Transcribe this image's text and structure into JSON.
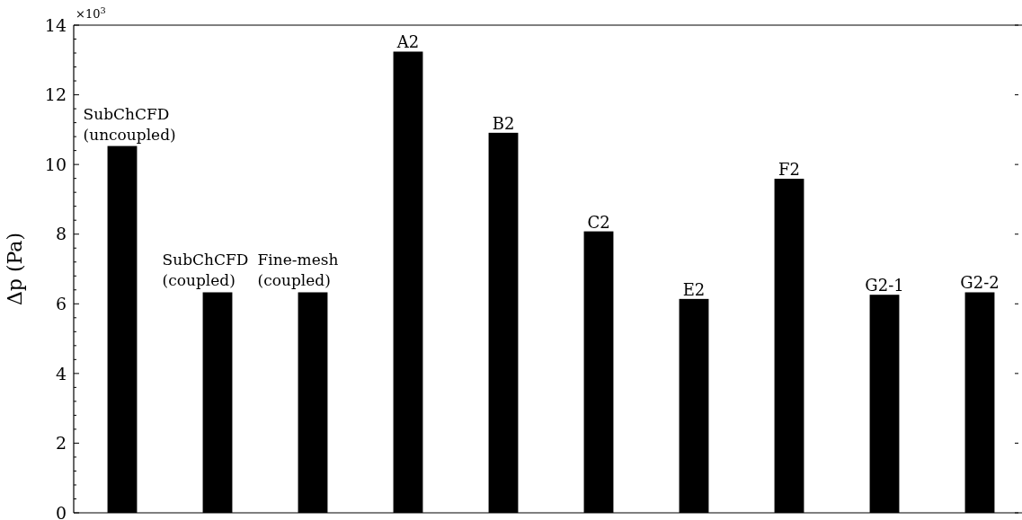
{
  "chart_data": {
    "type": "bar",
    "ylabel": "Δp (Pa)",
    "categories": [
      "SubChCFD (uncoupled)",
      "SubChCFD (coupled)",
      "Fine-mesh (coupled)",
      "A2",
      "B2",
      "C2",
      "E2",
      "F2",
      "G2-1",
      "G2-2"
    ],
    "values": [
      10.53,
      6.33,
      6.33,
      13.24,
      10.91,
      8.08,
      6.14,
      9.59,
      6.26,
      6.33
    ],
    "color": "#000000",
    "ylim": [
      0,
      14
    ],
    "yticks": [
      0,
      2,
      4,
      6,
      8,
      10,
      12,
      14
    ],
    "annotations": [
      "×10$^{3}$"
    ]
  }
}
